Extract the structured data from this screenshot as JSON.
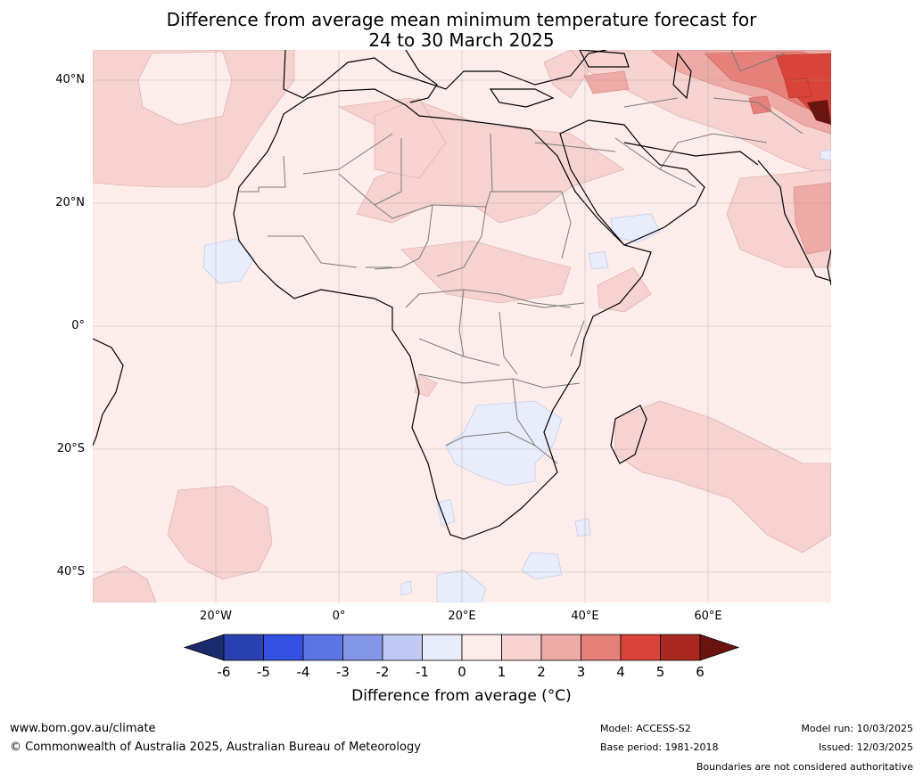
{
  "title": {
    "line1": "Difference from average mean minimum temperature forecast for",
    "line2": "24 to 30 March 2025"
  },
  "map": {
    "lat_labels": [
      "40°N",
      "20°N",
      "0°",
      "20°S",
      "40°S"
    ],
    "lon_labels": [
      "20°W",
      "0°",
      "20°E",
      "40°E",
      "60°E"
    ]
  },
  "colorbar": {
    "ticks": [
      "-6",
      "-5",
      "-4",
      "-3",
      "-2",
      "-1",
      "0",
      "1",
      "2",
      "3",
      "4",
      "5",
      "6"
    ],
    "colors": [
      "#1c2a6e",
      "#2a40b0",
      "#3350e0",
      "#5c74e4",
      "#8597e8",
      "#c0c9f2",
      "#e8ecfb",
      "#fcecea",
      "#f6d2d0",
      "#eeaaa6",
      "#e6807a",
      "#d8443a",
      "#a8281f",
      "#6a1410"
    ],
    "label": "Difference from average (°C)"
  },
  "footer": {
    "website": "www.bom.gov.au/climate",
    "copyright": "© Commonwealth of Australia 2025, Australian Bureau of Meteorology",
    "model": "Model: ACCESS-S2",
    "base_period": "Base period: 1981-2018",
    "model_run": "Model run: 10/03/2025",
    "issued": "Issued: 12/03/2025",
    "disclaimer": "Boundaries are not considered authoritative"
  }
}
